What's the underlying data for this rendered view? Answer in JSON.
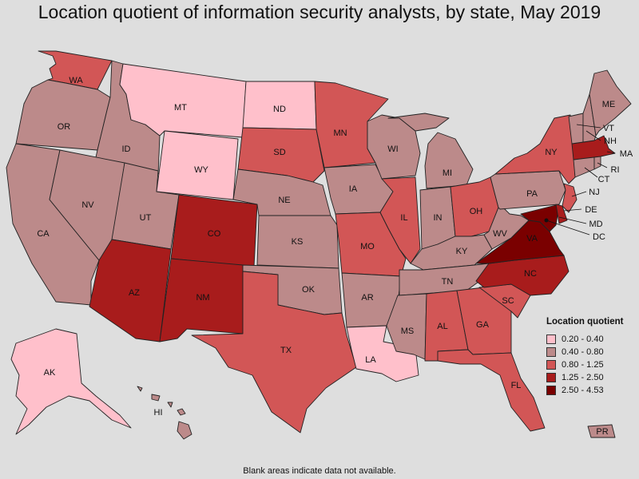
{
  "title": "Location quotient of information security analysts, by state, May 2019",
  "footnote": "Blank areas indicate data not available.",
  "legend": {
    "title": "Location quotient",
    "bins": [
      {
        "label": "0.20 - 0.40",
        "color": "#ffc0cb"
      },
      {
        "label": "0.40 - 0.80",
        "color": "#bc8a8a"
      },
      {
        "label": "0.80 - 1.25",
        "color": "#d25656"
      },
      {
        "label": "1.25 - 2.50",
        "color": "#a81c1c"
      },
      {
        "label": "2.50 - 4.53",
        "color": "#7a0000"
      }
    ]
  },
  "states": {
    "AK": {
      "bin": 0
    },
    "AL": {
      "bin": 2
    },
    "AR": {
      "bin": 1
    },
    "AZ": {
      "bin": 3
    },
    "CA": {
      "bin": 1
    },
    "CO": {
      "bin": 3
    },
    "CT": {
      "bin": 1
    },
    "DC": {
      "bin": 4
    },
    "DE": {
      "bin": 3
    },
    "FL": {
      "bin": 2
    },
    "GA": {
      "bin": 2
    },
    "HI": {
      "bin": 1
    },
    "IA": {
      "bin": 1
    },
    "ID": {
      "bin": 1
    },
    "IL": {
      "bin": 2
    },
    "IN": {
      "bin": 1
    },
    "KS": {
      "bin": 1
    },
    "KY": {
      "bin": 1
    },
    "LA": {
      "bin": 0
    },
    "MA": {
      "bin": 3
    },
    "MD": {
      "bin": 4
    },
    "ME": {
      "bin": 1
    },
    "MI": {
      "bin": 1
    },
    "MN": {
      "bin": 2
    },
    "MO": {
      "bin": 2
    },
    "MS": {
      "bin": 1
    },
    "MT": {
      "bin": 0
    },
    "NC": {
      "bin": 3
    },
    "ND": {
      "bin": 0
    },
    "NE": {
      "bin": 1
    },
    "NH": {
      "bin": 1
    },
    "NJ": {
      "bin": 2
    },
    "NM": {
      "bin": 3
    },
    "NV": {
      "bin": 1
    },
    "NY": {
      "bin": 2
    },
    "OH": {
      "bin": 2
    },
    "OK": {
      "bin": 1
    },
    "OR": {
      "bin": 1
    },
    "PA": {
      "bin": 1
    },
    "PR": {
      "bin": 1
    },
    "RI": {
      "bin": 1
    },
    "SC": {
      "bin": 2
    },
    "SD": {
      "bin": 2
    },
    "TN": {
      "bin": 1
    },
    "TX": {
      "bin": 2
    },
    "UT": {
      "bin": 1
    },
    "VA": {
      "bin": 4
    },
    "VT": {
      "bin": 1
    },
    "WA": {
      "bin": 2
    },
    "WI": {
      "bin": 1
    },
    "WV": {
      "bin": 1
    },
    "WY": {
      "bin": 0
    }
  }
}
